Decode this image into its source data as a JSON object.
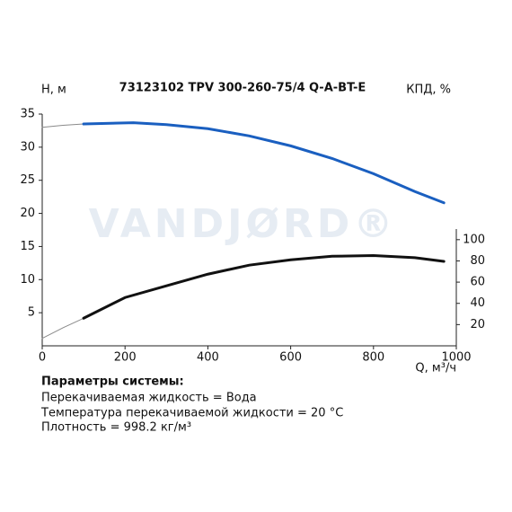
{
  "chart_data": {
    "type": "line",
    "title": "73123102 TPV 300-260-75/4 Q-A-BT-E",
    "ylabel": "H, м",
    "y2label": "КПД, %",
    "xlabel": "Q, м³/ч",
    "watermark": "VANDJØRD®",
    "xlim": [
      0,
      1000
    ],
    "xticks": [
      0,
      200,
      400,
      600,
      800,
      1000
    ],
    "ylim": [
      0,
      35
    ],
    "yticks": [
      5,
      10,
      15,
      20,
      25,
      30,
      35
    ],
    "y2lim": [
      0,
      110
    ],
    "y2ticks": [
      20,
      40,
      60,
      80,
      100
    ],
    "series": [
      {
        "color": "#8a8a8a",
        "x": [
          0,
          50,
          100
        ],
        "values": [
          33.0,
          33.3,
          33.5
        ]
      },
      {
        "color": "#1a5fc0",
        "x": [
          100,
          220,
          300,
          400,
          500,
          600,
          700,
          800,
          900,
          970
        ],
        "values": [
          33.5,
          33.7,
          33.4,
          32.8,
          31.7,
          30.2,
          28.3,
          26.0,
          23.3,
          21.6
        ]
      },
      {
        "color": "#8a8a8a",
        "axis": "y2",
        "x": [
          0,
          50,
          100
        ],
        "values": [
          7,
          17,
          26
        ]
      },
      {
        "color": "#111111",
        "axis": "y2",
        "x": [
          100,
          200,
          300,
          400,
          500,
          600,
          700,
          800,
          900,
          970
        ],
        "values": [
          26,
          45.5,
          56.5,
          67.5,
          76,
          81,
          84.4,
          85,
          83,
          79.5
        ]
      }
    ],
    "notes": {
      "heading": "Параметры системы:",
      "lines": [
        "Перекачиваемая жидкость = Вода",
        "Температура перекачиваемой жидкости = 20 °C",
        "Плотность = 998.2 кг/м³"
      ]
    }
  }
}
